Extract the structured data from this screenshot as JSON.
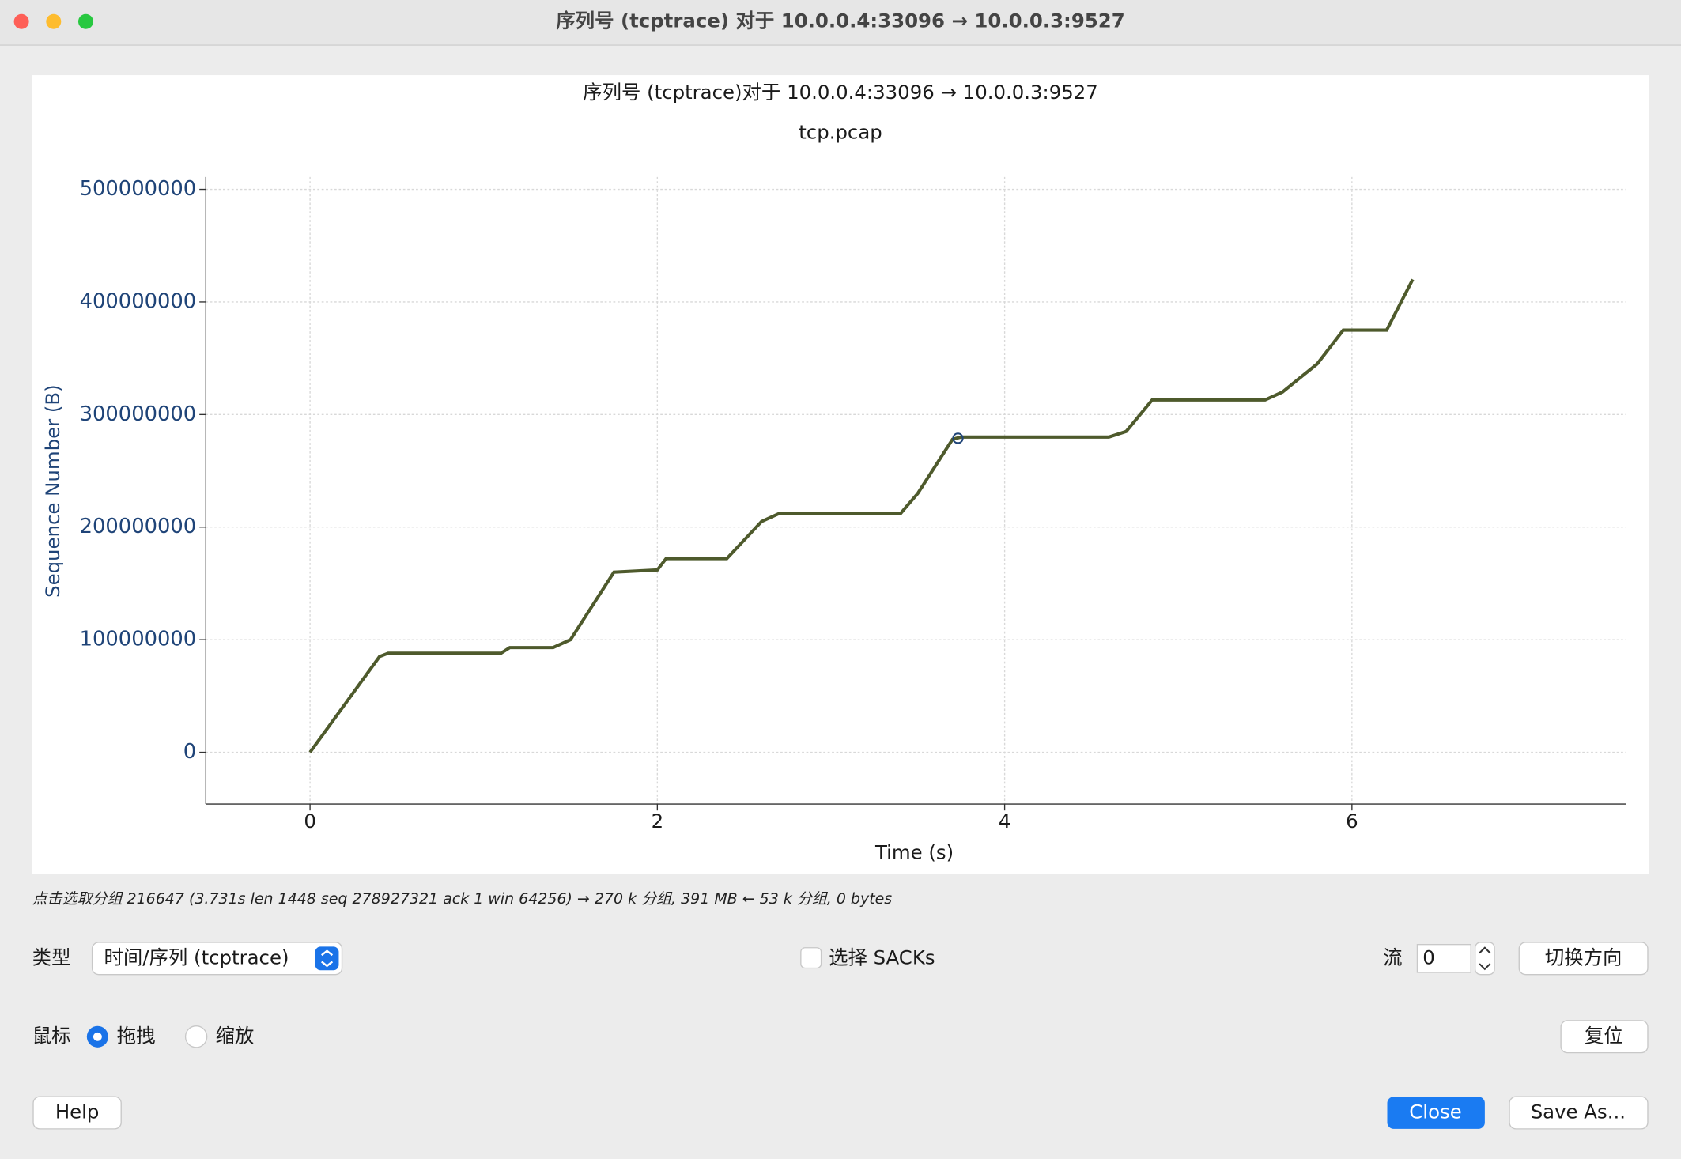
{
  "window": {
    "title": "序列号 (tcptrace) 对于 10.0.0.4:33096 → 10.0.0.3:9527"
  },
  "chart_data": {
    "type": "line",
    "title": "序列号 (tcptrace)对于 10.0.0.4:33096 → 10.0.0.3:9527",
    "subtitle": "tcp.pcap",
    "x_label": "Time (s)",
    "y_label": "Sequence Number (B)",
    "color": "#4e5a2c",
    "x": [
      0,
      0.4,
      0.45,
      1.1,
      1.15,
      1.4,
      1.5,
      1.75,
      2.0,
      2.05,
      2.4,
      2.6,
      2.7,
      3.4,
      3.5,
      3.7,
      3.75,
      4.6,
      4.7,
      4.85,
      5.5,
      5.6,
      5.8,
      5.95,
      6.2,
      6.35
    ],
    "values": [
      0,
      85000000,
      88000000,
      88000000,
      93000000,
      93000000,
      100000000,
      160000000,
      162000000,
      172000000,
      172000000,
      205000000,
      212000000,
      212000000,
      230000000,
      278000000,
      280000000,
      280000000,
      285000000,
      313000000,
      313000000,
      320000000,
      345000000,
      375000000,
      375000000,
      420000000
    ],
    "marker": {
      "x": 3.731,
      "y": 278927321
    },
    "xlim": [
      -0.6,
      7.58
    ],
    "ylim": [
      -46000000,
      511000000
    ],
    "xticks": [
      0,
      2,
      4,
      6
    ],
    "yticks": [
      0,
      100000000,
      200000000,
      300000000,
      400000000,
      500000000
    ],
    "grid": true
  },
  "status": "点击选取分组 216647 (3.731s len 1448 seq 278927321 ack 1 win 64256) → 270 k 分组, 391 MB ← 53 k 分组, 0 bytes",
  "controls": {
    "type_label": "类型",
    "type_value": "时间/序列 (tcptrace)",
    "sacks": "选择 SACKs",
    "stream_label": "流",
    "stream_value": "0",
    "switch": "切换方向",
    "mouse_label": "鼠标",
    "drag": "拖拽",
    "zoom": "缩放",
    "reset": "复位",
    "help": "Help",
    "close": "Close",
    "save": "Save As..."
  }
}
